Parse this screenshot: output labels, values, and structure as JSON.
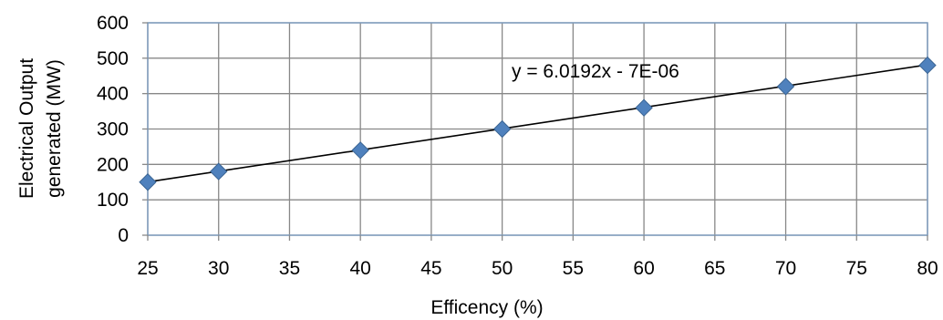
{
  "chart_data": {
    "type": "scatter",
    "xlabel": "Efficency (%)",
    "ylabel_lines": [
      "Electrical Output",
      "generated (MW)"
    ],
    "xlim": [
      25,
      80
    ],
    "ylim": [
      0,
      600
    ],
    "xticks": [
      25,
      30,
      35,
      40,
      45,
      50,
      55,
      60,
      65,
      70,
      75,
      80
    ],
    "yticks": [
      0,
      100,
      200,
      300,
      400,
      500,
      600
    ],
    "grid": true,
    "series": [
      {
        "x": [
          25,
          30,
          40,
          50,
          60,
          70,
          80
        ],
        "y": [
          150,
          180,
          240,
          300,
          360,
          420,
          480
        ],
        "marker": "diamond"
      }
    ],
    "trendline": {
      "slope": 6.0192,
      "intercept": -7e-06,
      "equation_label": "y = 6.0192x - 7E-06"
    },
    "colors": {
      "marker": "#4F81BD",
      "marker_edge": "#3A6493",
      "trendline": "#000000",
      "grid": "#888888",
      "plot_border": "#7F9DBF"
    }
  }
}
